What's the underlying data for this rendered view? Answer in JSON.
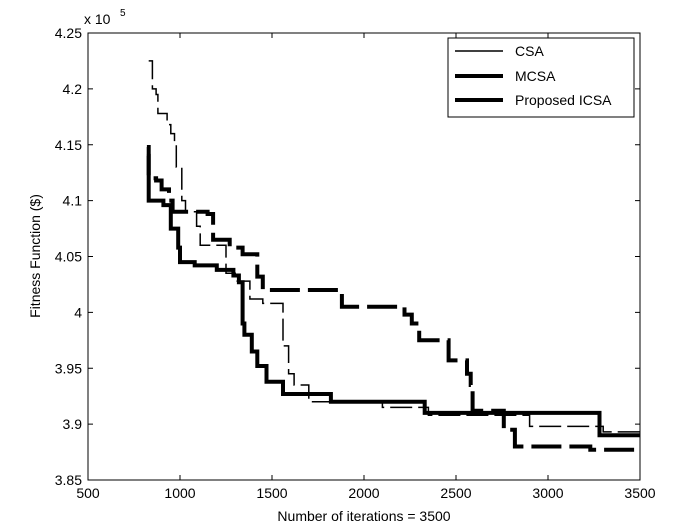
{
  "chart_data": {
    "type": "line",
    "xlabel": "Number of iterations = 3500",
    "ylabel": "Fitness Function ($)",
    "y_exponent_label": "x 10",
    "y_exponent_power": "5",
    "xlim": [
      500,
      3500
    ],
    "ylim": [
      3.85,
      4.25
    ],
    "y_scale_factor": 100000,
    "grid": false,
    "legend_position": "top-right",
    "x_ticks": [
      "500",
      "1000",
      "1500",
      "2000",
      "2500",
      "3000",
      "3500"
    ],
    "x_tick_values": [
      500,
      1000,
      1500,
      2000,
      2500,
      3000,
      3500
    ],
    "y_ticks": [
      "3.85",
      "3.9",
      "3.95",
      "4",
      "4.05",
      "4.1",
      "4.15",
      "4.2",
      "4.25"
    ],
    "y_tick_values": [
      3.85,
      3.9,
      3.95,
      4.0,
      4.05,
      4.1,
      4.15,
      4.2,
      4.25
    ],
    "series": [
      {
        "name": "CSA",
        "style": "dashed",
        "weight": "thin",
        "color": "#000000",
        "points": [
          [
            830,
            4.225
          ],
          [
            850,
            4.225
          ],
          [
            850,
            4.2
          ],
          [
            870,
            4.2
          ],
          [
            870,
            4.195
          ],
          [
            880,
            4.195
          ],
          [
            880,
            4.178
          ],
          [
            930,
            4.178
          ],
          [
            930,
            4.168
          ],
          [
            950,
            4.168
          ],
          [
            950,
            4.16
          ],
          [
            970,
            4.16
          ],
          [
            970,
            4.152
          ],
          [
            980,
            4.152
          ],
          [
            980,
            4.13
          ],
          [
            1010,
            4.13
          ],
          [
            1010,
            4.1
          ],
          [
            1030,
            4.1
          ],
          [
            1030,
            4.09
          ],
          [
            1090,
            4.09
          ],
          [
            1090,
            4.077
          ],
          [
            1110,
            4.077
          ],
          [
            1110,
            4.06
          ],
          [
            1250,
            4.06
          ],
          [
            1250,
            4.035
          ],
          [
            1300,
            4.035
          ],
          [
            1300,
            4.028
          ],
          [
            1380,
            4.028
          ],
          [
            1380,
            4.012
          ],
          [
            1450,
            4.012
          ],
          [
            1450,
            4.008
          ],
          [
            1560,
            4.008
          ],
          [
            1560,
            3.97
          ],
          [
            1590,
            3.97
          ],
          [
            1590,
            3.945
          ],
          [
            1620,
            3.945
          ],
          [
            1620,
            3.935
          ],
          [
            1700,
            3.935
          ],
          [
            1700,
            3.92
          ],
          [
            2100,
            3.92
          ],
          [
            2100,
            3.915
          ],
          [
            2350,
            3.915
          ],
          [
            2350,
            3.908
          ],
          [
            2900,
            3.908
          ],
          [
            2900,
            3.898
          ],
          [
            3300,
            3.898
          ],
          [
            3300,
            3.893
          ],
          [
            3500,
            3.893
          ]
        ]
      },
      {
        "name": "MCSA",
        "style": "solid",
        "weight": "thick",
        "color": "#000000",
        "points": [
          [
            820,
            4.14
          ],
          [
            830,
            4.14
          ],
          [
            830,
            4.1
          ],
          [
            910,
            4.1
          ],
          [
            910,
            4.096
          ],
          [
            950,
            4.096
          ],
          [
            950,
            4.075
          ],
          [
            990,
            4.075
          ],
          [
            990,
            4.058
          ],
          [
            1000,
            4.058
          ],
          [
            1000,
            4.045
          ],
          [
            1080,
            4.045
          ],
          [
            1080,
            4.042
          ],
          [
            1200,
            4.042
          ],
          [
            1200,
            4.038
          ],
          [
            1290,
            4.038
          ],
          [
            1290,
            4.033
          ],
          [
            1320,
            4.033
          ],
          [
            1320,
            4.027
          ],
          [
            1340,
            4.027
          ],
          [
            1340,
            3.99
          ],
          [
            1350,
            3.99
          ],
          [
            1350,
            3.98
          ],
          [
            1390,
            3.98
          ],
          [
            1390,
            3.965
          ],
          [
            1420,
            3.965
          ],
          [
            1420,
            3.952
          ],
          [
            1470,
            3.952
          ],
          [
            1470,
            3.938
          ],
          [
            1560,
            3.938
          ],
          [
            1560,
            3.927
          ],
          [
            1820,
            3.927
          ],
          [
            1820,
            3.92
          ],
          [
            2330,
            3.92
          ],
          [
            2330,
            3.91
          ],
          [
            3280,
            3.91
          ],
          [
            3280,
            3.89
          ],
          [
            3500,
            3.89
          ]
        ]
      },
      {
        "name": "Proposed ICSA",
        "style": "dashed",
        "weight": "thick",
        "color": "#000000",
        "points": [
          [
            820,
            4.148
          ],
          [
            830,
            4.148
          ],
          [
            830,
            4.12
          ],
          [
            870,
            4.12
          ],
          [
            870,
            4.118
          ],
          [
            900,
            4.118
          ],
          [
            900,
            4.11
          ],
          [
            940,
            4.11
          ],
          [
            940,
            4.1
          ],
          [
            960,
            4.1
          ],
          [
            960,
            4.09
          ],
          [
            1150,
            4.09
          ],
          [
            1150,
            4.088
          ],
          [
            1180,
            4.088
          ],
          [
            1180,
            4.065
          ],
          [
            1270,
            4.065
          ],
          [
            1270,
            4.058
          ],
          [
            1340,
            4.058
          ],
          [
            1340,
            4.052
          ],
          [
            1420,
            4.052
          ],
          [
            1420,
            4.032
          ],
          [
            1450,
            4.032
          ],
          [
            1450,
            4.02
          ],
          [
            1880,
            4.02
          ],
          [
            1880,
            4.005
          ],
          [
            2220,
            4.005
          ],
          [
            2220,
            3.998
          ],
          [
            2260,
            3.998
          ],
          [
            2260,
            3.99
          ],
          [
            2300,
            3.99
          ],
          [
            2300,
            3.975
          ],
          [
            2460,
            3.975
          ],
          [
            2460,
            3.957
          ],
          [
            2560,
            3.957
          ],
          [
            2560,
            3.945
          ],
          [
            2580,
            3.945
          ],
          [
            2580,
            3.935
          ],
          [
            2590,
            3.935
          ],
          [
            2590,
            3.912
          ],
          [
            2760,
            3.912
          ],
          [
            2760,
            3.895
          ],
          [
            2820,
            3.895
          ],
          [
            2820,
            3.88
          ],
          [
            3230,
            3.88
          ],
          [
            3230,
            3.877
          ],
          [
            3500,
            3.877
          ]
        ]
      }
    ]
  }
}
